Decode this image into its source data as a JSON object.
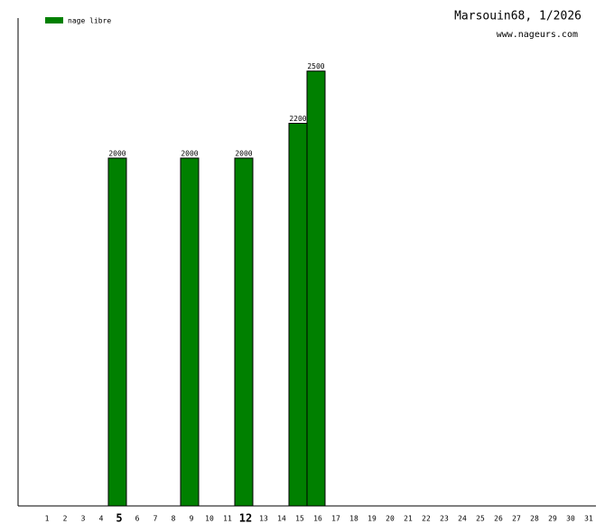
{
  "chart_data": {
    "type": "bar",
    "title": "Marsouin68, 1/2026",
    "subtitle": "www.nageurs.com",
    "categories": [
      "1",
      "2",
      "3",
      "4",
      "5",
      "6",
      "7",
      "8",
      "9",
      "10",
      "11",
      "12",
      "13",
      "14",
      "15",
      "16",
      "17",
      "18",
      "19",
      "20",
      "21",
      "22",
      "23",
      "24",
      "25",
      "26",
      "27",
      "28",
      "29",
      "30",
      "31"
    ],
    "emphasized": [
      4,
      11
    ],
    "series": [
      {
        "name": "nage libre",
        "color": "#008000",
        "values": [
          null,
          null,
          null,
          null,
          2000,
          null,
          null,
          null,
          2000,
          null,
          null,
          2000,
          null,
          null,
          2200,
          2500,
          null,
          null,
          null,
          null,
          null,
          null,
          null,
          null,
          null,
          null,
          null,
          null,
          null,
          null,
          null
        ]
      }
    ],
    "ylim": [
      0,
      2805
    ]
  }
}
